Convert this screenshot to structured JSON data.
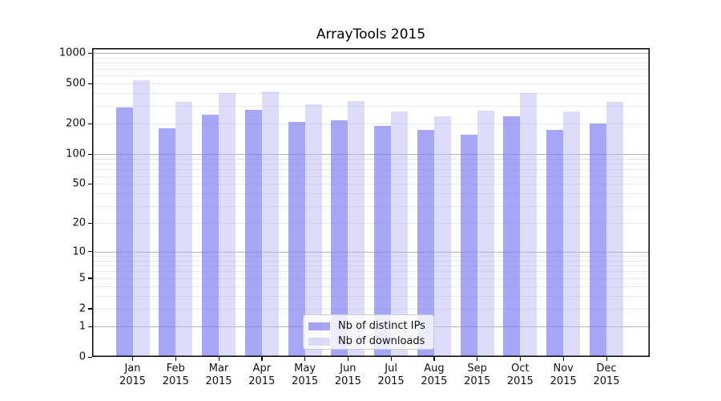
{
  "chart_data": {
    "type": "bar",
    "title": "ArrayTools 2015",
    "categories": [
      "Jan",
      "Feb",
      "Mar",
      "Apr",
      "May",
      "Jun",
      "Jul",
      "Aug",
      "Sep",
      "Oct",
      "Nov",
      "Dec"
    ],
    "category_year": "2015",
    "series": [
      {
        "name": "Nb of distinct IPs",
        "color": "rgba(124,124,242,0.68)",
        "values": [
          290,
          180,
          245,
          275,
          210,
          215,
          190,
          175,
          155,
          235,
          175,
          200
        ]
      },
      {
        "name": "Nb of downloads",
        "color": "rgba(186,186,242,0.5)",
        "values": [
          540,
          330,
          400,
          415,
          310,
          335,
          265,
          235,
          270,
          400,
          265,
          330
        ]
      }
    ],
    "xlabel": "",
    "ylabel": "",
    "yscale": "symlog",
    "ylim": [
      0,
      1120
    ],
    "yticks": [
      1000,
      500,
      200,
      100,
      50,
      20,
      10,
      5,
      2,
      1,
      0
    ],
    "grid": {
      "major_at": [
        1,
        10,
        100,
        1000
      ],
      "minor_subs": [
        2,
        3,
        4,
        5,
        6,
        7,
        8,
        9
      ],
      "major_color": "#b3b3b3",
      "minor_color": "#e8e8e8"
    },
    "legend_position": "lower center",
    "background": "#ffffff"
  }
}
